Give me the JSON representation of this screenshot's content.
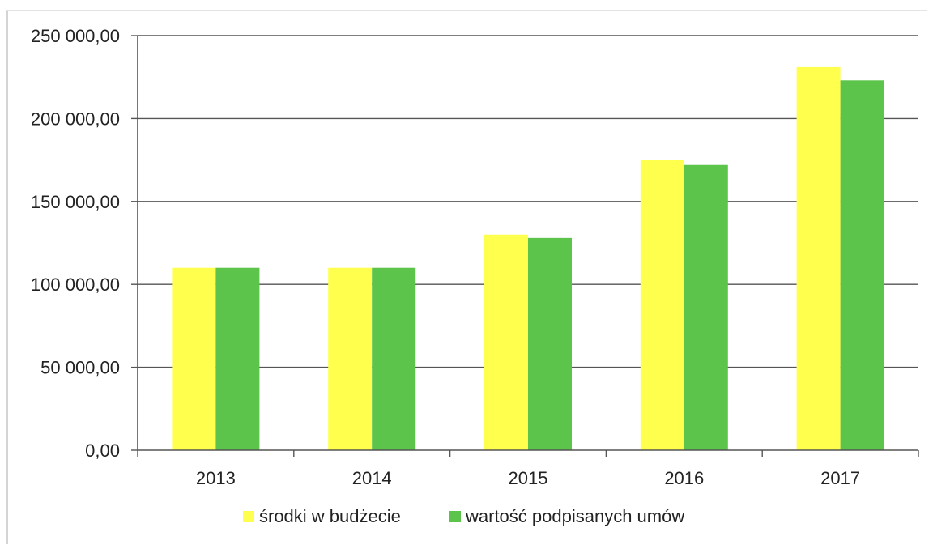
{
  "chart_data": {
    "type": "bar",
    "title": "",
    "xlabel": "",
    "ylabel": "",
    "categories": [
      "2013",
      "2014",
      "2015",
      "2016",
      "2017"
    ],
    "series": [
      {
        "name": "środki w budżecie",
        "color": "#ffff4d",
        "values": [
          110000,
          110000,
          130000,
          175000,
          231000
        ]
      },
      {
        "name": "wartość podpisanych umów",
        "color": "#5cc44a",
        "values": [
          110000,
          110000,
          128000,
          172000,
          223000
        ]
      }
    ],
    "ylim": [
      0,
      250000
    ],
    "yticks": [
      {
        "value": 0,
        "label": "0,00"
      },
      {
        "value": 50000,
        "label": "50 000,00"
      },
      {
        "value": 100000,
        "label": "100 000,00"
      },
      {
        "value": 150000,
        "label": "150 000,00"
      },
      {
        "value": 200000,
        "label": "200 000,00"
      },
      {
        "value": 250000,
        "label": "250 000,00"
      }
    ],
    "grid": true,
    "legend": "bottom"
  }
}
